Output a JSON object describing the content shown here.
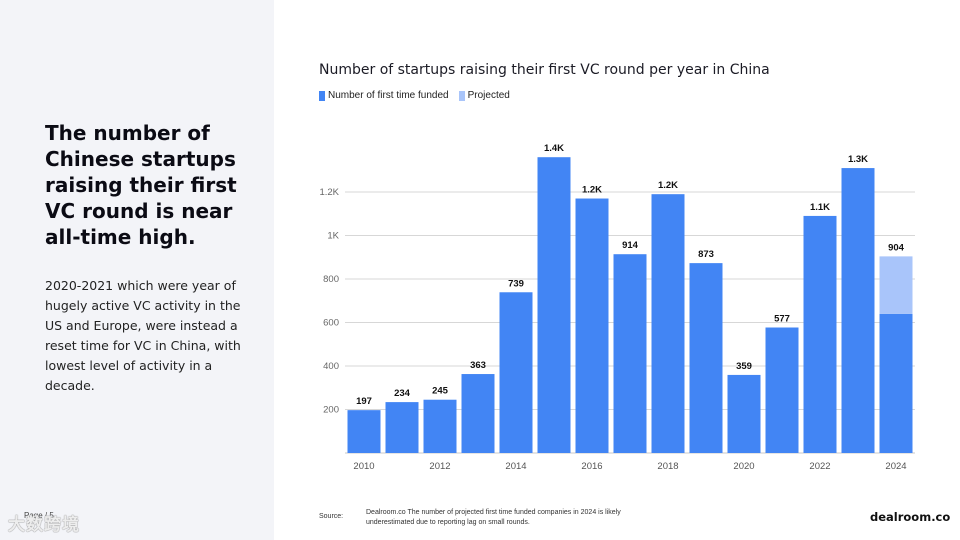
{
  "slide": {
    "headline": "The number of Chinese startups raising their first VC round is near all-time high.",
    "body": "2020-2021 which were year of hugely active VC activity in the US and Europe, were instead a reset time for VC in China, with lowest level of activity in a decade.",
    "page_label": "Page / 5",
    "watermark": "大数跨境",
    "source_label": "Source:",
    "source_text": "Dealroom.co  The number of projected first time funded companies in 2024 is likely underestimated due to reporting lag on small rounds.",
    "brand": "dealroom.co"
  },
  "colors": {
    "funded": "#4285f4",
    "projected": "#a9c5fa",
    "grid": "#d7d7d7",
    "panel": "#f3f4f8"
  },
  "chart_data": {
    "type": "bar",
    "title": "Number of startups raising their first VC round per year in China",
    "legend_position": "top-left",
    "grid": true,
    "categories": [
      "2010",
      "2011",
      "2012",
      "2013",
      "2014",
      "2015",
      "2016",
      "2017",
      "2018",
      "2019",
      "2020",
      "2021",
      "2022",
      "2023",
      "2024"
    ],
    "x_tick_labels": [
      "2010",
      "",
      "2012",
      "",
      "2014",
      "",
      "2016",
      "",
      "2018",
      "",
      "2020",
      "",
      "2022",
      "",
      "2024"
    ],
    "series": [
      {
        "name": "Number of first time funded",
        "values": [
          197,
          234,
          245,
          363,
          739,
          1360,
          1170,
          914,
          1190,
          873,
          359,
          577,
          1090,
          1310,
          640
        ]
      },
      {
        "name": "Projected",
        "values": [
          0,
          0,
          0,
          0,
          0,
          0,
          0,
          0,
          0,
          0,
          0,
          0,
          0,
          0,
          264
        ]
      }
    ],
    "data_labels": [
      "197",
      "234",
      "245",
      "363",
      "739",
      "1.4K",
      "1.2K",
      "914",
      "1.2K",
      "873",
      "359",
      "577",
      "1.1K",
      "1.3K",
      "904"
    ],
    "y_ticks": [
      200,
      400,
      600,
      800,
      1000,
      1200
    ],
    "y_tick_labels": [
      "200",
      "400",
      "600",
      "800",
      "1K",
      "1.2K"
    ],
    "ylim": [
      0,
      1400
    ],
    "stacked": true
  }
}
